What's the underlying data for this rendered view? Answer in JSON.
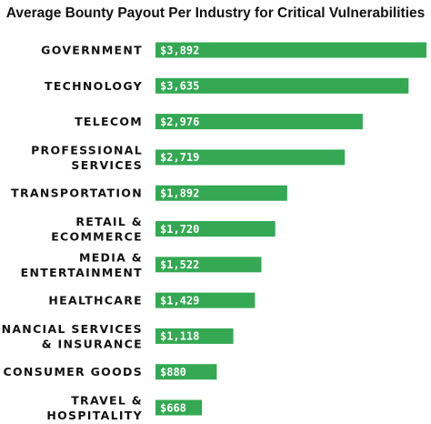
{
  "chart_data": {
    "type": "bar",
    "orientation": "horizontal",
    "title": "Average Bounty Payout Per Industry for Critical Vulnerabilities",
    "categories": [
      [
        "GOVERNMENT"
      ],
      [
        "TECHNOLOGY"
      ],
      [
        "TELECOM"
      ],
      [
        "PROFESSIONAL",
        "SERVICES"
      ],
      [
        "TRANSPORTATION"
      ],
      [
        "RETAIL &",
        "ECOMMERCE"
      ],
      [
        "MEDIA &",
        "ENTERTAINMENT"
      ],
      [
        "HEALTHCARE"
      ],
      [
        "FINANCIAL SERVICES",
        "& INSURANCE"
      ],
      [
        "CONSUMER GOODS"
      ],
      [
        "TRAVEL &",
        "HOSPITALITY"
      ]
    ],
    "values": [
      3892,
      3635,
      2976,
      2719,
      1892,
      1720,
      1522,
      1429,
      1118,
      880,
      668
    ],
    "value_labels": [
      "$3,892",
      "$3,635",
      "$2,976",
      "$2,719",
      "$1,892",
      "$1,720",
      "$1,522",
      "$1,429",
      "$1,118",
      "$880",
      "$668"
    ],
    "xlim": [
      0,
      3892
    ],
    "grid": false,
    "bar_color": "#34a853"
  }
}
